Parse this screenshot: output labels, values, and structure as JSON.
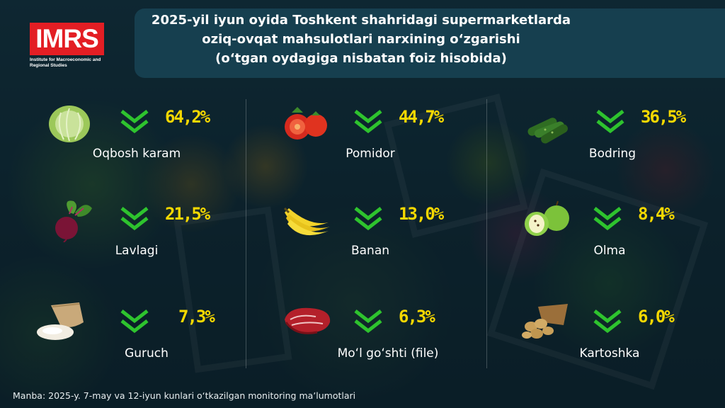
{
  "logo": {
    "text": "IMRS",
    "subtitle": "Institute for Macroeconomic and Regional Studies"
  },
  "title": {
    "line1": "2025-yil iyun oyida Toshkent shahridagi supermarketlarda",
    "line2": "oziq-ovqat mahsulotlari narxining oʻzgarishi",
    "line3": "(oʻtgan oydagiga nisbatan foiz hisobida)"
  },
  "items": [
    {
      "name": "Oqbosh karam",
      "value": "64,2%",
      "icon": "cabbage-icon",
      "trend": "down"
    },
    {
      "name": "Pomidor",
      "value": "44,7%",
      "icon": "tomato-icon",
      "trend": "down"
    },
    {
      "name": "Bodring",
      "value": "36,5%",
      "icon": "cucumber-icon",
      "trend": "down"
    },
    {
      "name": "Lavlagi",
      "value": "21,5%",
      "icon": "beetroot-icon",
      "trend": "down"
    },
    {
      "name": "Banan",
      "value": "13,0%",
      "icon": "banana-icon",
      "trend": "down"
    },
    {
      "name": "Olma",
      "value": "8,4%",
      "icon": "apple-icon",
      "trend": "down"
    },
    {
      "name": "Guruch",
      "value": "7,3%",
      "icon": "rice-icon",
      "trend": "down"
    },
    {
      "name": "Moʻl goʻshti (file)",
      "value": "6,3%",
      "icon": "beef-icon",
      "trend": "down"
    },
    {
      "name": "Kartoshka",
      "value": "6,0%",
      "icon": "potato-icon",
      "trend": "down"
    }
  ],
  "colors": {
    "value": "#f5d800",
    "arrow": "#2ec32e",
    "title_box": "#163f4f",
    "logo": "#e31e24"
  },
  "source": "Manba: 2025-y. 7-may va 12-iyun kunlari oʻtkazilgan monitoring maʼlumotlari"
}
